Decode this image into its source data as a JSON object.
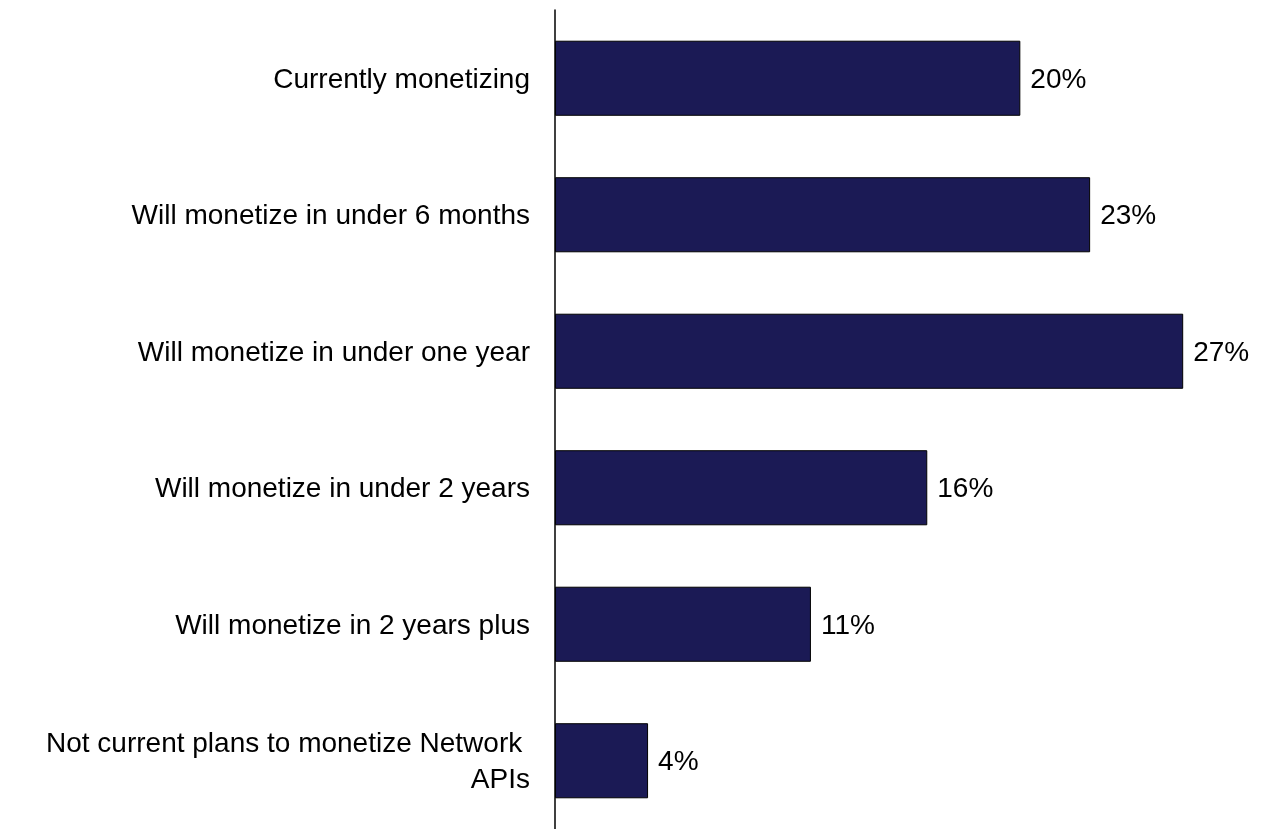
{
  "chart_data": {
    "type": "bar",
    "orientation": "horizontal",
    "categories": [
      "Currently monetizing",
      "Will monetize in under 6 months",
      "Will monetize in under one year",
      "Will monetize in under 2 years",
      "Will monetize in 2 years plus",
      "Not current plans to monetize Network APIs"
    ],
    "values": [
      20,
      23,
      27,
      16,
      11,
      4
    ],
    "value_labels": [
      "20%",
      "23%",
      "27%",
      "16%",
      "11%",
      "4%"
    ],
    "color": "#1b1a55"
  }
}
